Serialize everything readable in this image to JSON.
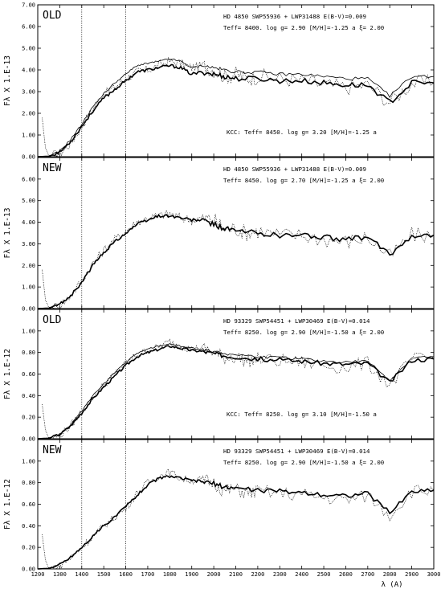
{
  "chart_data": [
    {
      "type": "line",
      "tag": "OLD",
      "y_unit_label": "Fλ X 1.E-13",
      "info_lines": [
        "HD 4850 SWP55936 + LWP31488  E(B-V)=0.009",
        "Teff=  8400.  log g= 2.90 [M/H]=-1.25 a ξ= 2.00"
      ],
      "bottom_note": "KCC: Teff=  8450. log g= 3.20 [M/H]=-1.25 a",
      "xlim": [
        1200,
        3000
      ],
      "ylim": [
        0,
        7.0
      ],
      "yticks": [
        "0.00",
        "1.00",
        "2.00",
        "3.00",
        "4.00",
        "5.00",
        "6.00",
        "7.00"
      ],
      "ytick_values": [
        0,
        1,
        2,
        3,
        4,
        5,
        6,
        7
      ],
      "series": [
        {
          "style": "observed-dotted",
          "x": [
            1220,
            1235,
            1250,
            1300,
            1350,
            1400,
            1450,
            1500,
            1550,
            1600,
            1650,
            1700,
            1750,
            1800,
            1850,
            1900,
            1950,
            2000,
            2050,
            2100,
            2150,
            2200,
            2300,
            2400,
            2500,
            2600,
            2700,
            2800,
            2900,
            3000
          ],
          "y": [
            1.8,
            0.4,
            0.05,
            0.15,
            0.6,
            1.4,
            2.2,
            2.9,
            3.2,
            3.6,
            3.9,
            4.0,
            4.2,
            4.4,
            4.3,
            4.1,
            4.2,
            4.0,
            3.7,
            3.8,
            3.6,
            3.7,
            3.6,
            3.5,
            3.3,
            3.2,
            3.3,
            2.5,
            3.4,
            3.4
          ]
        },
        {
          "style": "model-thick",
          "x": [
            1200,
            1250,
            1300,
            1350,
            1400,
            1450,
            1500,
            1550,
            1600,
            1650,
            1700,
            1750,
            1800,
            1850,
            1900,
            1950,
            2000,
            2050,
            2100,
            2200,
            2300,
            2400,
            2500,
            2600,
            2700,
            2800,
            2900,
            3000
          ],
          "y": [
            0,
            0.02,
            0.2,
            0.7,
            1.4,
            2.1,
            2.7,
            3.1,
            3.5,
            3.9,
            4.0,
            4.1,
            4.2,
            4.1,
            3.8,
            3.9,
            3.8,
            3.7,
            3.6,
            3.6,
            3.5,
            3.5,
            3.4,
            3.3,
            3.3,
            2.5,
            3.4,
            3.4
          ]
        },
        {
          "style": "kcc-thin",
          "x": [
            1200,
            1250,
            1300,
            1350,
            1400,
            1450,
            1500,
            1550,
            1600,
            1650,
            1700,
            1750,
            1800,
            1850,
            1900,
            1950,
            2000,
            2050,
            2100,
            2200,
            2300,
            2400,
            2500,
            2600,
            2700,
            2800,
            2900,
            3000
          ],
          "y": [
            0,
            0.02,
            0.25,
            0.8,
            1.5,
            2.3,
            2.9,
            3.4,
            3.8,
            4.2,
            4.3,
            4.4,
            4.5,
            4.4,
            4.1,
            4.2,
            4.1,
            4.0,
            3.9,
            3.9,
            3.8,
            3.8,
            3.7,
            3.6,
            3.6,
            2.8,
            3.7,
            3.7
          ]
        }
      ]
    },
    {
      "type": "line",
      "tag": "NEW",
      "y_unit_label": "Fλ X 1.E-13",
      "info_lines": [
        "HD 4850 SWP55936 + LWP31488  E(B-V)=0.009",
        "Teff=  8450.  log g= 2.70 [M/H]=-1.25 a ξ= 2.00"
      ],
      "bottom_note": "",
      "xlim": [
        1200,
        3000
      ],
      "ylim": [
        0,
        7.0
      ],
      "yticks": [
        "0.00",
        "1.00",
        "2.00",
        "3.00",
        "4.00",
        "5.00",
        "6.00"
      ],
      "ytick_values": [
        0,
        1,
        2,
        3,
        4,
        5,
        6
      ],
      "series": [
        {
          "style": "observed-dotted",
          "x": [
            1220,
            1235,
            1250,
            1300,
            1350,
            1400,
            1450,
            1500,
            1550,
            1600,
            1650,
            1700,
            1750,
            1800,
            1850,
            1900,
            1950,
            2000,
            2050,
            2100,
            2150,
            2200,
            2300,
            2400,
            2500,
            2600,
            2700,
            2800,
            2900,
            3000
          ],
          "y": [
            1.8,
            0.4,
            0.05,
            0.15,
            0.6,
            1.3,
            2.1,
            2.7,
            3.2,
            3.6,
            4.0,
            4.2,
            4.3,
            4.4,
            4.2,
            4.1,
            4.2,
            4.1,
            3.7,
            3.7,
            3.5,
            3.6,
            3.4,
            3.4,
            3.2,
            3.1,
            3.3,
            2.4,
            3.4,
            3.4
          ]
        },
        {
          "style": "model-thick",
          "x": [
            1200,
            1250,
            1300,
            1350,
            1400,
            1450,
            1500,
            1550,
            1600,
            1650,
            1700,
            1750,
            1800,
            1850,
            1900,
            1950,
            2000,
            2050,
            2100,
            2200,
            2300,
            2400,
            2500,
            2600,
            2700,
            2800,
            2900,
            3000
          ],
          "y": [
            0,
            0.02,
            0.2,
            0.6,
            1.2,
            2.0,
            2.6,
            3.1,
            3.5,
            3.9,
            4.1,
            4.3,
            4.3,
            4.2,
            4.1,
            4.1,
            3.9,
            3.7,
            3.6,
            3.5,
            3.4,
            3.4,
            3.3,
            3.2,
            3.3,
            2.5,
            3.4,
            3.4
          ]
        }
      ]
    },
    {
      "type": "line",
      "tag": "OLD",
      "y_unit_label": "Fλ X 1.E-12",
      "info_lines": [
        "HD 93329 SWP54451 + LWP30469  E(B-V)=0.014",
        "Teff=  8250.  log g= 2.90 [M/H]=-1.50 a ξ= 2.00"
      ],
      "bottom_note": "KCC: Teff=  8250. log g= 3.10 [M/H]=-1.50 a",
      "xlim": [
        1200,
        3000
      ],
      "ylim": [
        0,
        1.2
      ],
      "yticks": [
        "0.00",
        "0.20",
        "0.40",
        "0.60",
        "0.80",
        "1.00"
      ],
      "ytick_values": [
        0,
        0.2,
        0.4,
        0.6,
        0.8,
        1.0
      ],
      "series": [
        {
          "style": "observed-dotted",
          "x": [
            1220,
            1235,
            1250,
            1300,
            1350,
            1400,
            1450,
            1500,
            1550,
            1600,
            1650,
            1700,
            1750,
            1800,
            1850,
            1900,
            1950,
            2000,
            2050,
            2100,
            2150,
            2200,
            2300,
            2400,
            2500,
            2600,
            2700,
            2800,
            2900,
            3000
          ],
          "y": [
            0.32,
            0.08,
            0.01,
            0.03,
            0.12,
            0.25,
            0.38,
            0.5,
            0.6,
            0.7,
            0.78,
            0.82,
            0.85,
            0.9,
            0.86,
            0.83,
            0.84,
            0.8,
            0.75,
            0.76,
            0.72,
            0.74,
            0.72,
            0.71,
            0.68,
            0.66,
            0.7,
            0.5,
            0.73,
            0.75
          ]
        },
        {
          "style": "model-thick",
          "x": [
            1200,
            1250,
            1300,
            1350,
            1400,
            1450,
            1500,
            1550,
            1600,
            1650,
            1700,
            1750,
            1800,
            1850,
            1900,
            1950,
            2000,
            2050,
            2100,
            2200,
            2300,
            2400,
            2500,
            2600,
            2700,
            2800,
            2900,
            3000
          ],
          "y": [
            0,
            0.005,
            0.04,
            0.12,
            0.24,
            0.37,
            0.48,
            0.58,
            0.68,
            0.76,
            0.8,
            0.83,
            0.86,
            0.84,
            0.82,
            0.81,
            0.79,
            0.77,
            0.76,
            0.74,
            0.73,
            0.72,
            0.7,
            0.69,
            0.7,
            0.52,
            0.73,
            0.74
          ]
        },
        {
          "style": "kcc-thin",
          "x": [
            1200,
            1250,
            1300,
            1350,
            1400,
            1450,
            1500,
            1550,
            1600,
            1650,
            1700,
            1750,
            1800,
            1850,
            1900,
            1950,
            2000,
            2050,
            2100,
            2200,
            2300,
            2400,
            2500,
            2600,
            2700,
            2800,
            2900,
            3000
          ],
          "y": [
            0,
            0.005,
            0.045,
            0.13,
            0.26,
            0.4,
            0.51,
            0.61,
            0.71,
            0.79,
            0.83,
            0.86,
            0.88,
            0.86,
            0.84,
            0.83,
            0.81,
            0.79,
            0.78,
            0.76,
            0.75,
            0.74,
            0.72,
            0.71,
            0.72,
            0.54,
            0.75,
            0.76
          ]
        }
      ]
    },
    {
      "type": "line",
      "tag": "NEW",
      "y_unit_label": "Fλ X 1.E-12",
      "info_lines": [
        "HD 93329 SWP54451 + LWP30469  E(B-V)=0.014",
        "Teff=  8250.  log g= 2.90 [M/H]=-1.50 a ξ= 2.00"
      ],
      "bottom_note": "",
      "xlim": [
        1200,
        3000
      ],
      "ylim": [
        0,
        1.2
      ],
      "yticks": [
        "0.00",
        "0.20",
        "0.40",
        "0.60",
        "0.80",
        "1.00"
      ],
      "ytick_values": [
        0,
        0.2,
        0.4,
        0.6,
        0.8,
        1.0
      ],
      "series": [
        {
          "style": "observed-dotted",
          "x": [
            1220,
            1235,
            1250,
            1300,
            1350,
            1400,
            1450,
            1500,
            1550,
            1600,
            1650,
            1700,
            1750,
            1800,
            1850,
            1900,
            1950,
            2000,
            2050,
            2100,
            2150,
            2200,
            2300,
            2400,
            2500,
            2600,
            2700,
            2800,
            2900,
            3000
          ],
          "y": [
            0.32,
            0.08,
            0.01,
            0.03,
            0.1,
            0.2,
            0.3,
            0.4,
            0.48,
            0.56,
            0.7,
            0.8,
            0.86,
            0.9,
            0.84,
            0.82,
            0.83,
            0.8,
            0.72,
            0.74,
            0.7,
            0.72,
            0.7,
            0.69,
            0.66,
            0.64,
            0.68,
            0.5,
            0.72,
            0.73
          ]
        },
        {
          "style": "model-thick",
          "x": [
            1200,
            1250,
            1300,
            1350,
            1400,
            1450,
            1500,
            1550,
            1600,
            1650,
            1700,
            1750,
            1800,
            1850,
            1900,
            1950,
            2000,
            2050,
            2100,
            2200,
            2300,
            2400,
            2500,
            2600,
            2700,
            2800,
            2900,
            3000
          ],
          "y": [
            0,
            0.005,
            0.04,
            0.11,
            0.2,
            0.3,
            0.4,
            0.48,
            0.58,
            0.68,
            0.78,
            0.84,
            0.86,
            0.84,
            0.82,
            0.81,
            0.79,
            0.76,
            0.75,
            0.73,
            0.72,
            0.71,
            0.69,
            0.68,
            0.7,
            0.52,
            0.72,
            0.73
          ]
        }
      ]
    }
  ],
  "x_axis": {
    "ticks": [
      1200,
      1300,
      1400,
      1500,
      1600,
      1700,
      1800,
      1900,
      2000,
      2100,
      2200,
      2300,
      2400,
      2500,
      2600,
      2700,
      2800,
      2900,
      3000
    ],
    "tick_labels": [
      "1200",
      "1300",
      "1400",
      "1500",
      "1600",
      "1700",
      "1800",
      "1900",
      "2000",
      "2100",
      "2200",
      "2300",
      "2400",
      "2500",
      "2600",
      "2700",
      "2800",
      "2900",
      "3000"
    ],
    "title": "λ (A)",
    "reference_lines": [
      1400,
      1600
    ]
  }
}
